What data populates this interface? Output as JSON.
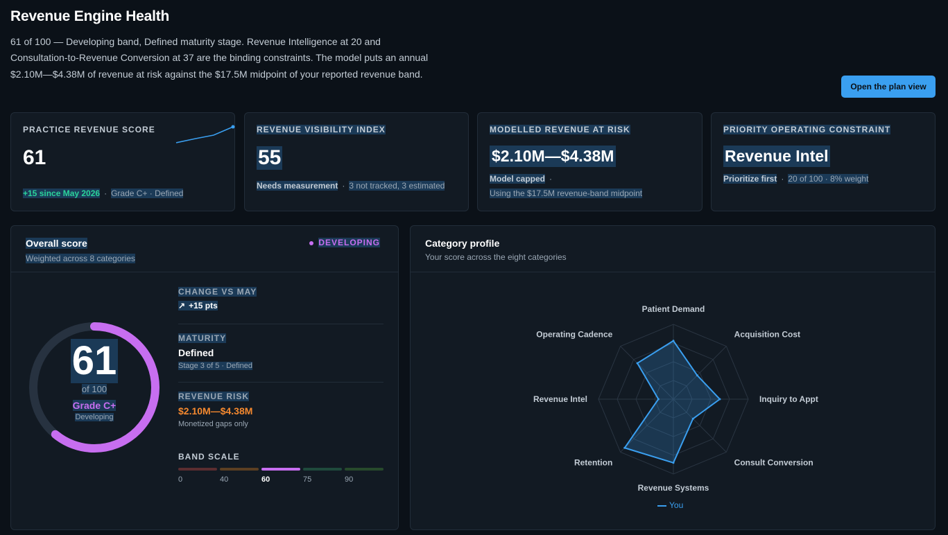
{
  "header": {
    "title": "Revenue Engine Health",
    "summary": "61 of 100 — Developing band, Defined maturity stage. Revenue Intelligence at 20 and Consultation-to-Revenue Conversion at 37 are the binding constraints. The model puts an annual $2.10M—$4.38M of revenue at risk against the $17.5M midpoint of your reported revenue band.",
    "plan_button": "Open the plan view"
  },
  "kpis": {
    "practice": {
      "label": "PRACTICE REVENUE SCORE",
      "value": "61",
      "delta": "+15 since May 2026",
      "separator": "·",
      "meta": "Grade C+ · Defined"
    },
    "visibility": {
      "label": "REVENUE VISIBILITY INDEX",
      "value": "55",
      "status": "Needs measurement",
      "separator": "·",
      "meta": "3 not tracked, 3 estimated"
    },
    "risk": {
      "label": "MODELLED REVENUE AT RISK",
      "value": "$2.10M—$4.38M",
      "status": "Model capped",
      "separator": "·",
      "meta": "Using the $17.5M revenue-band midpoint"
    },
    "constraint": {
      "label": "PRIORITY OPERATING CONSTRAINT",
      "value": "Revenue Intel",
      "status": "Prioritize first",
      "separator": "·",
      "meta": "20 of 100 · 8% weight"
    }
  },
  "overall": {
    "title": "Overall score",
    "subtitle": "Weighted across 8 categories",
    "badge": "DEVELOPING",
    "score": "61",
    "score_value": 61,
    "of": "of 100",
    "grade": "Grade C+",
    "band": "Developing",
    "change_label": "CHANGE VS MAY",
    "change_value": "+15 pts",
    "maturity_label": "MATURITY",
    "maturity_value": "Defined",
    "maturity_sub": "Stage 3 of 5 · Defined",
    "risk_label": "REVENUE RISK",
    "risk_value": "$2.10M—$4.38M",
    "risk_sub": "Monetized gaps only",
    "scale_label": "BAND SCALE",
    "scale_ticks": [
      "0",
      "40",
      "60",
      "75",
      "90"
    ],
    "active_tick": "60",
    "colors": {
      "accent": "#c76ef0",
      "ring_track": "#273240",
      "green": "#2bd39b",
      "orange": "#f5892f",
      "band_colors": [
        "#5a2d30",
        "#5b3f22",
        "#c76ef0",
        "#1f4a3c",
        "#274a2c"
      ]
    }
  },
  "profile": {
    "title": "Category profile",
    "subtitle": "Your score across the eight categories",
    "legend": "You",
    "series_color": "#3a9ff0",
    "categories": [
      {
        "name": "Patient Demand",
        "value": 78
      },
      {
        "name": "Acquisition Cost",
        "value": 45
      },
      {
        "name": "Inquiry to Appt",
        "value": 62
      },
      {
        "name": "Consult Conversion",
        "value": 37
      },
      {
        "name": "Revenue Systems",
        "value": 85
      },
      {
        "name": "Retention",
        "value": 92
      },
      {
        "name": "Revenue Intel",
        "value": 20
      },
      {
        "name": "Operating Cadence",
        "value": 68
      }
    ]
  }
}
